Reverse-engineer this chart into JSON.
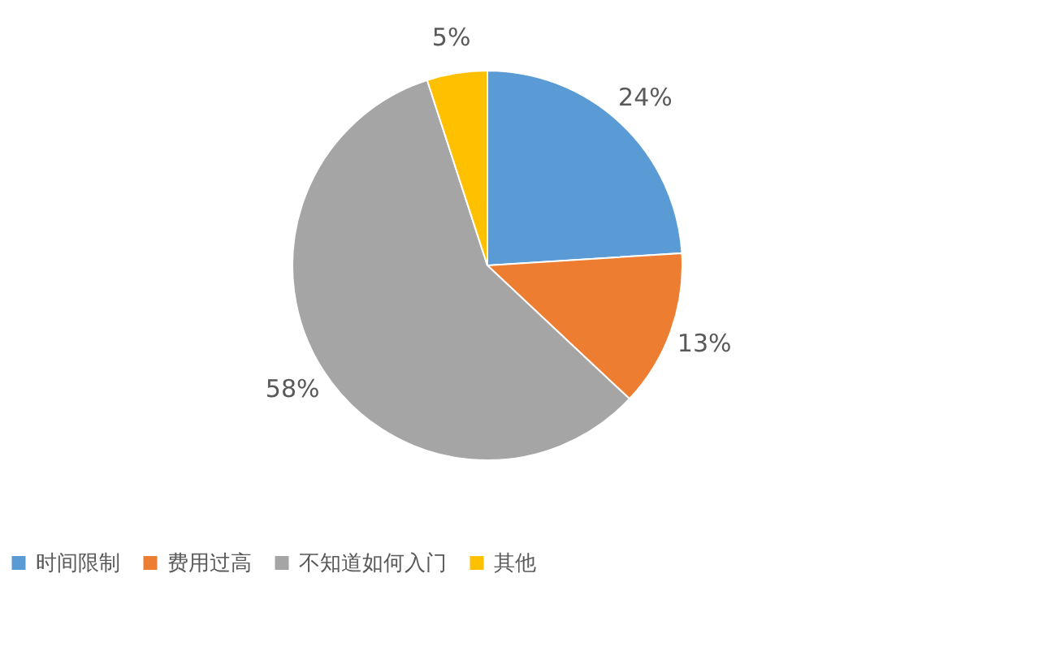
{
  "chart_data": {
    "type": "pie",
    "categories": [
      "时间限制",
      "费用过高",
      "不知道如何入门",
      "其他"
    ],
    "values": [
      24,
      13,
      58,
      5
    ],
    "colors": [
      "#5b9bd5",
      "#ed7d31",
      "#a5a5a5",
      "#ffc000"
    ],
    "value_labels": [
      "24%",
      "13%",
      "58%",
      "5%"
    ],
    "legend": "bottom"
  }
}
